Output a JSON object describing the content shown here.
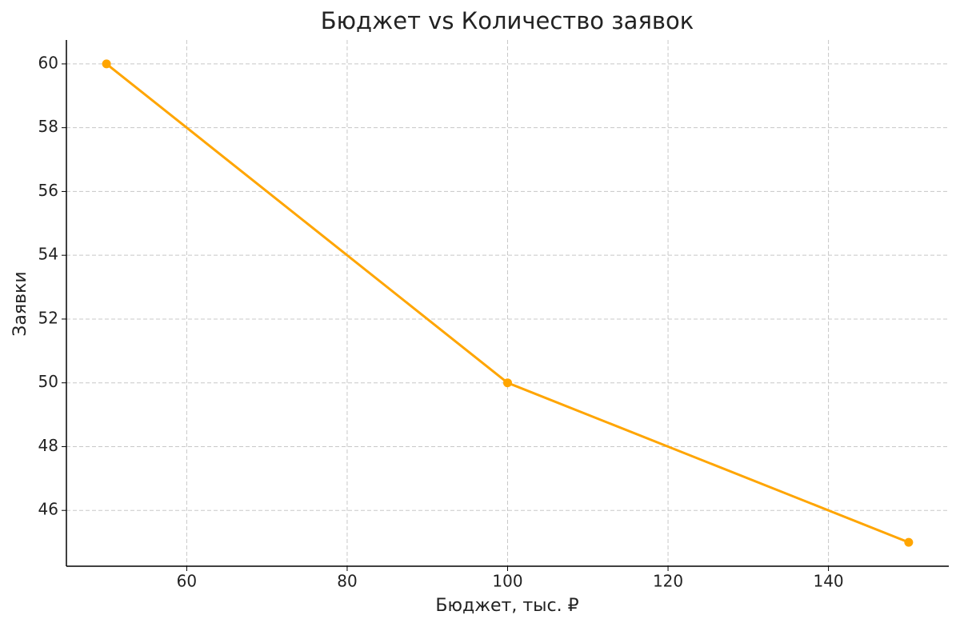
{
  "chart_data": {
    "type": "line",
    "title": "Бюджет vs Количество заявок",
    "x_label": "Бюджет, тыс. ₽",
    "y_label": "Заявки",
    "x": [
      50,
      100,
      150
    ],
    "series": [
      {
        "name": "Заявки",
        "color": "#FFA500",
        "values": [
          60,
          50,
          45
        ]
      }
    ],
    "xlim": [
      45,
      155
    ],
    "xticks": [
      60,
      80,
      100,
      120,
      140
    ],
    "ylim": [
      44.25,
      60.75
    ],
    "yticks": [
      46,
      48,
      50,
      52,
      54,
      56,
      58,
      60
    ],
    "grid": true
  }
}
